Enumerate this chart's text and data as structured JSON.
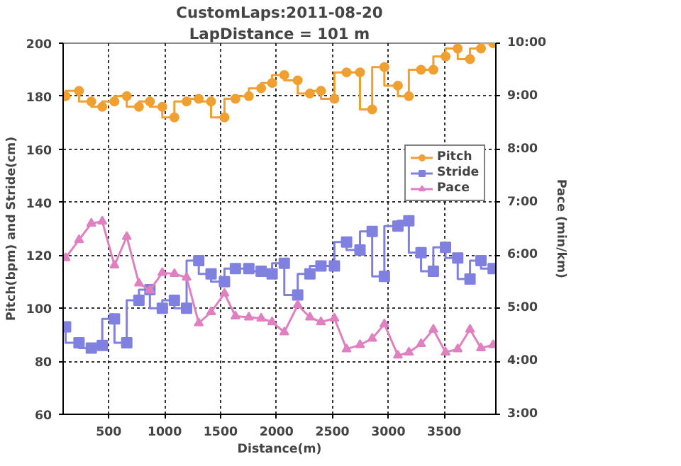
{
  "chart_data": {
    "type": "step",
    "title": "CustomLaps:2011-08-20",
    "subtitle": "LapDistance = 101 m",
    "xlabel": "Distance(m)",
    "ylabel": "Pitch(bpm) and Stride(cm)",
    "y2label": "Pace (min/km)",
    "x": [
      114,
      234,
      344,
      442,
      551,
      661,
      770,
      868,
      979,
      1087,
      1196,
      1305,
      1415,
      1535,
      1633,
      1753,
      1863,
      1961,
      2070,
      2190,
      2299,
      2398,
      2518,
      2627,
      2747,
      2856,
      2965,
      3086,
      3184,
      3293,
      3403,
      3512,
      3621,
      3731,
      3829,
      3938
    ],
    "xlim": [
      92,
      3962
    ],
    "xticks": [
      500,
      1000,
      1500,
      2000,
      2500,
      3000,
      3500
    ],
    "ylim": [
      60,
      200
    ],
    "yticks": [
      60,
      80,
      100,
      120,
      140,
      160,
      180,
      200
    ],
    "y2lim": [
      3,
      10
    ],
    "y2ticks": [
      {
        "value": 3,
        "label": "3:00"
      },
      {
        "value": 4,
        "label": "4:00"
      },
      {
        "value": 5,
        "label": "5:00"
      },
      {
        "value": 6,
        "label": "6:00"
      },
      {
        "value": 7,
        "label": "7:00"
      },
      {
        "value": 8,
        "label": "8:00"
      },
      {
        "value": 9,
        "label": "9:00"
      },
      {
        "value": 10,
        "label": "10:00"
      }
    ],
    "grid": true,
    "legend": "top right",
    "line_style": "solid",
    "series": [
      {
        "name": "Pitch",
        "color": "#f0a030",
        "marker": "circle",
        "values": [
          180,
          182,
          178,
          176,
          178,
          180,
          176,
          178,
          176,
          172,
          178,
          179,
          178,
          172,
          179,
          180,
          183,
          185,
          188,
          186,
          181,
          182,
          179,
          189,
          189,
          175,
          191,
          184,
          180,
          190,
          190,
          195,
          198,
          194,
          198,
          200
        ]
      },
      {
        "name": "Stride",
        "color": "#8080e0",
        "marker": "square",
        "values": [
          93,
          87,
          85,
          86,
          96,
          87,
          103,
          107,
          100,
          103,
          100,
          118,
          113,
          110,
          115,
          115,
          114,
          113,
          117,
          105,
          113,
          116,
          116,
          125,
          122,
          129,
          112,
          131,
          133,
          121,
          114,
          123,
          119,
          111,
          118,
          115
        ]
      },
      {
        "name": "Pace",
        "color": "#e080c0",
        "type": "line",
        "marker": "triangle",
        "axis": "y2",
        "values": [
          5.95,
          6.29,
          6.6,
          6.64,
          5.81,
          6.35,
          5.47,
          5.34,
          5.67,
          5.65,
          5.58,
          4.72,
          4.93,
          5.28,
          4.85,
          4.83,
          4.81,
          4.74,
          4.55,
          5.06,
          4.83,
          4.74,
          4.81,
          4.23,
          4.31,
          4.43,
          4.7,
          4.11,
          4.17,
          4.33,
          4.6,
          4.17,
          4.23,
          4.6,
          4.25,
          4.31
        ]
      }
    ]
  }
}
